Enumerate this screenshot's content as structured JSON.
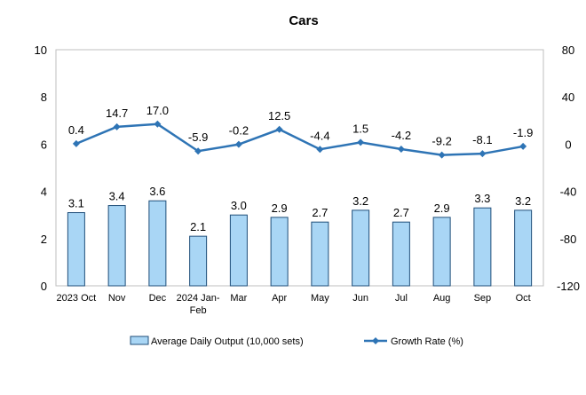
{
  "chart_data": {
    "type": "bar",
    "title": "Cars",
    "categories": [
      "2023 Oct",
      "Nov",
      "Dec",
      "2024 Jan-Feb",
      "Mar",
      "Apr",
      "May",
      "Jun",
      "Jul",
      "Aug",
      "Sep",
      "Oct"
    ],
    "category_lines": [
      [
        "2023 Oct"
      ],
      [
        "Nov"
      ],
      [
        "Dec"
      ],
      [
        "2024 Jan-",
        "Feb"
      ],
      [
        "Mar"
      ],
      [
        "Apr"
      ],
      [
        "May"
      ],
      [
        "Jun"
      ],
      [
        "Jul"
      ],
      [
        "Aug"
      ],
      [
        "Sep"
      ],
      [
        "Oct"
      ]
    ],
    "series": [
      {
        "name": "Average Daily Output (10,000 sets)",
        "kind": "bar",
        "axis": "left",
        "color": "#a9d6f5",
        "edge_color": "#1f4e79",
        "values": [
          3.1,
          3.4,
          3.6,
          2.1,
          3.0,
          2.9,
          2.7,
          3.2,
          2.7,
          2.9,
          3.3,
          3.2
        ],
        "labels": [
          "3.1",
          "3.4",
          "3.6",
          "2.1",
          "3.0",
          "2.9",
          "2.7",
          "3.2",
          "2.7",
          "2.9",
          "3.3",
          "3.2"
        ]
      },
      {
        "name": "Growth Rate (%)",
        "kind": "line",
        "axis": "right",
        "color": "#2e74b5",
        "marker": "diamond",
        "values": [
          0.4,
          14.7,
          17.0,
          -5.9,
          -0.2,
          12.5,
          -4.4,
          1.5,
          -4.2,
          -9.2,
          -8.1,
          -1.9
        ],
        "labels": [
          "0.4",
          "14.7",
          "17.0",
          "-5.9",
          "-0.2",
          "12.5",
          "-4.4",
          "1.5",
          "-4.2",
          "-9.2",
          "-8.1",
          "-1.9"
        ]
      }
    ],
    "y_left": {
      "min": 0,
      "max": 10,
      "ticks": [
        0,
        2,
        4,
        6,
        8,
        10
      ]
    },
    "y_right": {
      "min": -120,
      "max": 80,
      "ticks": [
        -120,
        -80,
        -40,
        0,
        40,
        80
      ]
    },
    "legend_position": "bottom",
    "grid": false
  }
}
